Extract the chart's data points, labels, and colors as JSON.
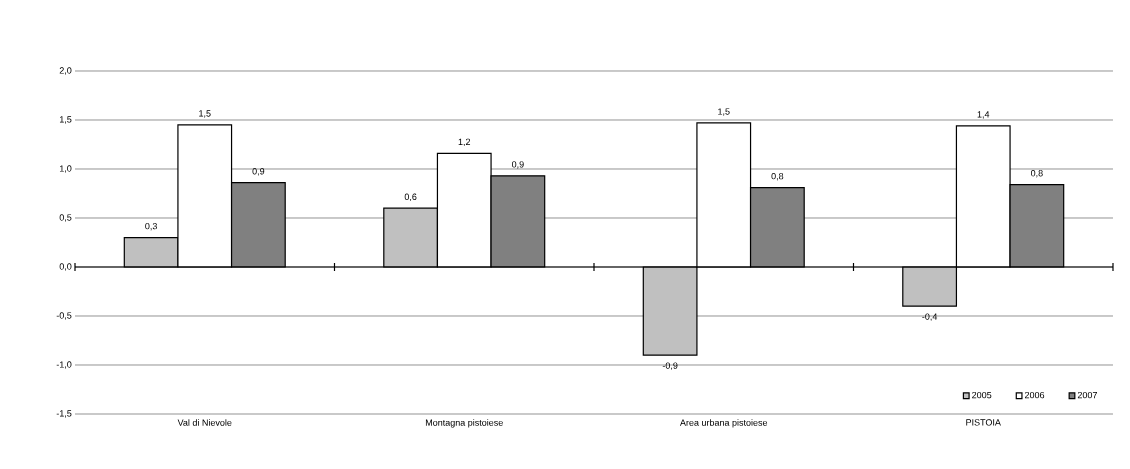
{
  "chart_data": {
    "type": "bar",
    "categories": [
      "Val di Nievole",
      "Montagna pistoiese",
      "Area urbana pistoiese",
      "PISTOIA"
    ],
    "series": [
      {
        "name": "2005",
        "color": "#c0c0c0",
        "values": [
          0.3,
          0.6,
          -0.9,
          -0.4
        ],
        "value_labels": [
          "0,3",
          "0,6",
          "-0,9",
          "-0,4"
        ]
      },
      {
        "name": "2006",
        "color": "#ffffff",
        "values": [
          1.45,
          1.16,
          1.47,
          1.44
        ],
        "value_labels": [
          "1,5",
          "1,2",
          "1,5",
          "1,4"
        ]
      },
      {
        "name": "2007",
        "color": "#808080",
        "values": [
          0.86,
          0.93,
          0.81,
          0.84
        ],
        "value_labels": [
          "0,9",
          "0,9",
          "0,8",
          "0,8"
        ]
      }
    ],
    "ylim": [
      -1.5,
      2.0
    ],
    "yticks": [
      {
        "value": -1.5,
        "label": "-1,5"
      },
      {
        "value": -1.0,
        "label": "-1,0"
      },
      {
        "value": -0.5,
        "label": "-0,5"
      },
      {
        "value": 0.0,
        "label": "0,0"
      },
      {
        "value": 0.5,
        "label": "0,5"
      },
      {
        "value": 1.0,
        "label": "1,0"
      },
      {
        "value": 1.5,
        "label": "1,5"
      },
      {
        "value": 2.0,
        "label": "2,0"
      }
    ],
    "grid": "y",
    "legend": "bottom right"
  }
}
